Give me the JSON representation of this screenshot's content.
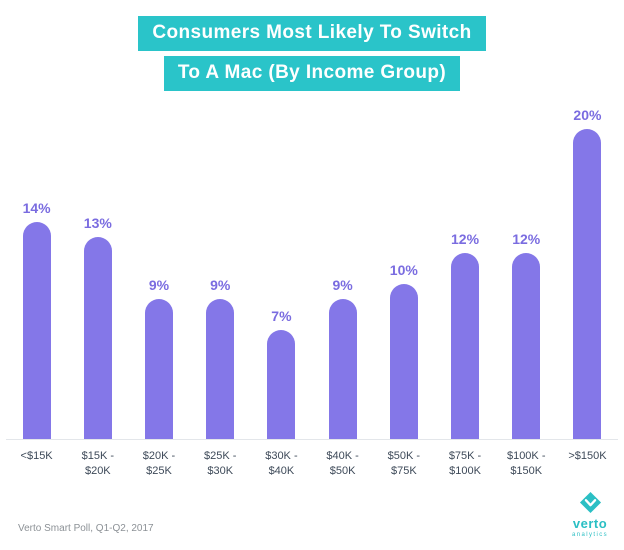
{
  "title": {
    "line1": "Consumers Most Likely To Switch",
    "line2": "To A Mac (By Income Group)"
  },
  "chart_data": {
    "type": "bar",
    "categories": [
      "<$15K",
      "$15K - $20K",
      "$20K - $25K",
      "$25K - $30K",
      "$30K - $40K",
      "$40K - $50K",
      "$50K - $75K",
      "$75K - $100K",
      "$100K - $150K",
      ">$150K"
    ],
    "values": [
      14,
      13,
      9,
      9,
      7,
      9,
      10,
      12,
      12,
      20
    ],
    "value_labels": [
      "14%",
      "13%",
      "9%",
      "9%",
      "7%",
      "9%",
      "10%",
      "12%",
      "12%",
      "20%"
    ],
    "title": "Consumers Most Likely To Switch To A Mac (By Income Group)",
    "xlabel": "",
    "ylabel": "",
    "ylim": [
      0,
      20
    ],
    "grid": false,
    "legend": false,
    "bar_color": "#8477E8",
    "value_label_color": "#7A6CE0",
    "axis_label_color": "#3E4A59",
    "title_bg_color": "#2AC4C9",
    "title_text_color": "#FFFFFF"
  },
  "footer": {
    "source": "Verto Smart Poll, Q1-Q2, 2017",
    "logo": {
      "brand": "verto",
      "sub": "analytics",
      "icon": "verto-diamond-icon",
      "color": "#2BBFC4"
    }
  }
}
